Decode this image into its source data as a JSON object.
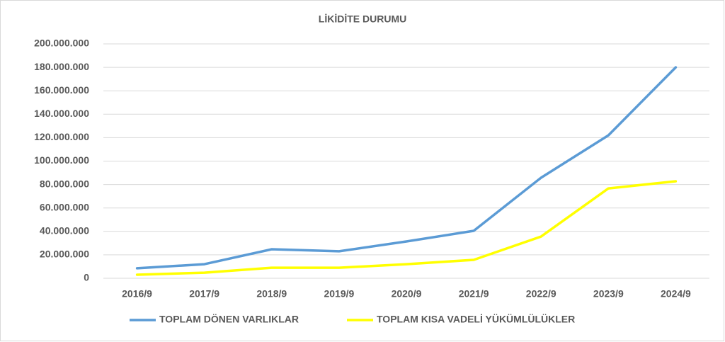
{
  "chart_data": {
    "type": "line",
    "title": "LİKİDİTE DURUMU",
    "categories": [
      "2016/9",
      "2017/9",
      "2018/9",
      "2019/9",
      "2020/9",
      "2021/9",
      "2022/9",
      "2023/9",
      "2024/9"
    ],
    "series": [
      {
        "name": "TOPLAM DÖNEN VARLIKLAR",
        "color": "#5b9bd5",
        "values": [
          8500000,
          12000000,
          24800000,
          23000000,
          31400000,
          40500000,
          85800000,
          122000000,
          180000000
        ]
      },
      {
        "name": "TOPLAM KISA VADELİ YÜKÜMLÜLÜKLER",
        "color": "#ffff00",
        "values": [
          3000000,
          4800000,
          9000000,
          9000000,
          12000000,
          15700000,
          35600000,
          76700000,
          82800000
        ]
      }
    ],
    "ylim": [
      0,
      200000000
    ],
    "yticks": [
      0,
      {
        "value": 20000000,
        "label": "20.000.000"
      },
      {
        "value": 40000000,
        "label": "40.000.000"
      },
      {
        "value": 60000000,
        "label": "60.000.000"
      },
      {
        "value": 80000000,
        "label": "80.000.000"
      },
      {
        "value": 100000000,
        "label": "100.000.000"
      },
      {
        "value": 120000000,
        "label": "120.000.000"
      },
      {
        "value": 140000000,
        "label": "140.000.000"
      },
      {
        "value": 160000000,
        "label": "160.000.000"
      },
      {
        "value": 180000000,
        "label": "180.000.000"
      },
      {
        "value": 200000000,
        "label": "200.000.000"
      }
    ],
    "grid": true,
    "legend": "bottom"
  }
}
